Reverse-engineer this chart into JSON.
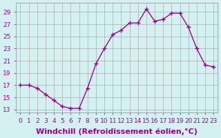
{
  "x": [
    0,
    1,
    2,
    3,
    4,
    5,
    6,
    7,
    8,
    9,
    10,
    11,
    12,
    13,
    14,
    15,
    16,
    17,
    18,
    19,
    20,
    21,
    22,
    23
  ],
  "y": [
    17.0,
    17.0,
    16.5,
    15.5,
    14.5,
    13.5,
    13.2,
    13.2,
    16.5,
    20.5,
    23.0,
    25.3,
    26.0,
    27.2,
    27.2,
    29.5,
    27.5,
    27.8,
    28.8,
    28.8,
    26.5,
    23.0,
    20.3,
    20.0
  ],
  "line_color": "#990099",
  "marker": "+",
  "marker_size": 5,
  "bg_color": "#d5f0f0",
  "grid_color": "#aaaaaa",
  "xlabel": "Windchill (Refroidissement éolien,°C)",
  "xlabel_fontsize": 8,
  "yticks": [
    13,
    15,
    17,
    19,
    21,
    23,
    25,
    27,
    29
  ],
  "xticks": [
    0,
    1,
    2,
    3,
    4,
    5,
    6,
    7,
    8,
    9,
    10,
    11,
    12,
    13,
    14,
    15,
    16,
    17,
    18,
    19,
    20,
    21,
    22,
    23
  ],
  "ylim": [
    12.5,
    30.5
  ],
  "xlim": [
    -0.5,
    23.5
  ],
  "tick_color": "#990099",
  "tick_fontsize": 6.5,
  "label_color": "#990099"
}
